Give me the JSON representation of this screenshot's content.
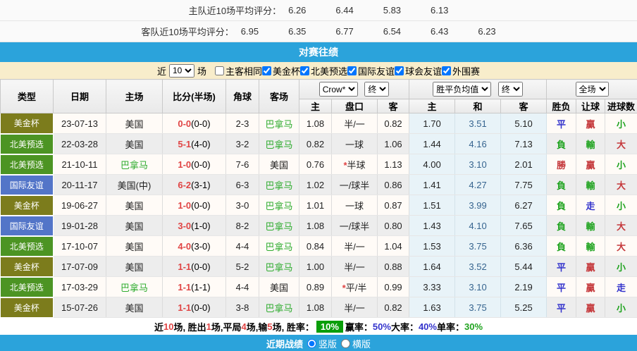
{
  "colors": {
    "bar_blue": "#2BA3DB",
    "filter_bg": "#F8EDCB",
    "type_olive": "#7C7C1C",
    "type_green": "#4C9423",
    "type_blue": "#5375C8",
    "team_green": "#2FAC2F",
    "score_red": "#E04444",
    "mean_blue": "#36648F",
    "res_red": "#C5383B",
    "res_green": "#1FA31F",
    "res_blue": "#3333CC",
    "badge_green": "#0A9E0A"
  },
  "ratings": {
    "home_label": "主队近10场平均评分：",
    "home_values": [
      "6.26",
      "6.44",
      "5.83",
      "6.13"
    ],
    "away_label": "客队近10场平均评分：",
    "away_values": [
      "6.95",
      "6.35",
      "6.77",
      "6.54",
      "6.43",
      "6.23"
    ]
  },
  "h2h": {
    "title": "对赛往绩"
  },
  "filter": {
    "near_label": "近",
    "count_value": "10",
    "games_label": "场",
    "checkboxes": [
      {
        "label": "主客相同",
        "checked": false
      },
      {
        "label": "美金杯",
        "checked": true
      },
      {
        "label": "北美预选",
        "checked": true
      },
      {
        "label": "国际友谊",
        "checked": true
      },
      {
        "label": "球会友谊",
        "checked": true
      },
      {
        "label": "外围赛",
        "checked": true
      }
    ]
  },
  "table": {
    "columns": [
      "类型",
      "日期",
      "主场",
      "比分(半场)",
      "角球",
      "客场"
    ],
    "dropdowns": {
      "odds_source": "Crow*",
      "odds_state": "终",
      "mean_label": "胜平负均值",
      "mean_state": "终",
      "scope": "全场"
    },
    "subcolumns": [
      "主",
      "盘口",
      "客",
      "主",
      "和",
      "客",
      "胜负",
      "让球",
      "进球数"
    ],
    "rows": [
      {
        "type": "美金杯",
        "type_color": "olive",
        "date": "23-07-13",
        "home": "美国",
        "home_green": false,
        "score": "0-0",
        "half": "(0-0)",
        "corner": "2-3",
        "away": "巴拿马",
        "away_green": true,
        "odds": [
          "1.08",
          "半/一",
          "0.82"
        ],
        "star": false,
        "mean": [
          "1.70",
          "3.51",
          "5.10"
        ],
        "res": [
          [
            "平",
            "blue"
          ],
          [
            "贏",
            "red"
          ],
          [
            "小",
            "green"
          ]
        ]
      },
      {
        "type": "北美预选",
        "type_color": "green",
        "date": "22-03-28",
        "home": "美国",
        "home_green": false,
        "score": "5-1",
        "half": "(4-0)",
        "corner": "3-2",
        "away": "巴拿马",
        "away_green": true,
        "odds": [
          "0.82",
          "一球",
          "1.06"
        ],
        "star": false,
        "mean": [
          "1.44",
          "4.16",
          "7.13"
        ],
        "res": [
          [
            "負",
            "green"
          ],
          [
            "輸",
            "green"
          ],
          [
            "大",
            "red"
          ]
        ]
      },
      {
        "type": "北美预选",
        "type_color": "green",
        "date": "21-10-11",
        "home": "巴拿马",
        "home_green": true,
        "score": "1-0",
        "half": "(0-0)",
        "corner": "7-6",
        "away": "美国",
        "away_green": false,
        "odds": [
          "0.76",
          "半球",
          "1.13"
        ],
        "star": true,
        "mean": [
          "4.00",
          "3.10",
          "2.01"
        ],
        "res": [
          [
            "勝",
            "red"
          ],
          [
            "贏",
            "red"
          ],
          [
            "小",
            "green"
          ]
        ]
      },
      {
        "type": "国际友谊",
        "type_color": "blue",
        "date": "20-11-17",
        "home": "美国(中)",
        "home_green": false,
        "score": "6-2",
        "half": "(3-1)",
        "corner": "6-3",
        "away": "巴拿马",
        "away_green": true,
        "odds": [
          "1.02",
          "一/球半",
          "0.86"
        ],
        "star": false,
        "mean": [
          "1.41",
          "4.27",
          "7.75"
        ],
        "res": [
          [
            "負",
            "green"
          ],
          [
            "輸",
            "green"
          ],
          [
            "大",
            "red"
          ]
        ]
      },
      {
        "type": "美金杯",
        "type_color": "olive",
        "date": "19-06-27",
        "home": "美国",
        "home_green": false,
        "score": "1-0",
        "half": "(0-0)",
        "corner": "3-0",
        "away": "巴拿马",
        "away_green": true,
        "odds": [
          "1.01",
          "一球",
          "0.87"
        ],
        "star": false,
        "mean": [
          "1.51",
          "3.99",
          "6.27"
        ],
        "res": [
          [
            "負",
            "green"
          ],
          [
            "走",
            "blue"
          ],
          [
            "小",
            "green"
          ]
        ]
      },
      {
        "type": "国际友谊",
        "type_color": "blue",
        "date": "19-01-28",
        "home": "美国",
        "home_green": false,
        "score": "3-0",
        "half": "(1-0)",
        "corner": "8-2",
        "away": "巴拿马",
        "away_green": true,
        "odds": [
          "1.08",
          "一/球半",
          "0.80"
        ],
        "star": false,
        "mean": [
          "1.43",
          "4.10",
          "7.65"
        ],
        "res": [
          [
            "負",
            "green"
          ],
          [
            "輸",
            "green"
          ],
          [
            "大",
            "red"
          ]
        ]
      },
      {
        "type": "北美预选",
        "type_color": "green",
        "date": "17-10-07",
        "home": "美国",
        "home_green": false,
        "score": "4-0",
        "half": "(3-0)",
        "corner": "4-4",
        "away": "巴拿马",
        "away_green": true,
        "odds": [
          "0.84",
          "半/一",
          "1.04"
        ],
        "star": false,
        "mean": [
          "1.53",
          "3.75",
          "6.36"
        ],
        "res": [
          [
            "負",
            "green"
          ],
          [
            "輸",
            "green"
          ],
          [
            "大",
            "red"
          ]
        ]
      },
      {
        "type": "美金杯",
        "type_color": "olive",
        "date": "17-07-09",
        "home": "美国",
        "home_green": false,
        "score": "1-1",
        "half": "(0-0)",
        "corner": "5-2",
        "away": "巴拿马",
        "away_green": true,
        "odds": [
          "1.00",
          "半/一",
          "0.88"
        ],
        "star": false,
        "mean": [
          "1.64",
          "3.52",
          "5.44"
        ],
        "res": [
          [
            "平",
            "blue"
          ],
          [
            "贏",
            "red"
          ],
          [
            "小",
            "green"
          ]
        ]
      },
      {
        "type": "北美预选",
        "type_color": "green",
        "date": "17-03-29",
        "home": "巴拿马",
        "home_green": true,
        "score": "1-1",
        "half": "(1-1)",
        "corner": "4-4",
        "away": "美国",
        "away_green": false,
        "odds": [
          "0.89",
          "平/半",
          "0.99"
        ],
        "star": true,
        "mean": [
          "3.33",
          "3.10",
          "2.19"
        ],
        "res": [
          [
            "平",
            "blue"
          ],
          [
            "贏",
            "red"
          ],
          [
            "走",
            "blue"
          ]
        ]
      },
      {
        "type": "美金杯",
        "type_color": "olive",
        "date": "15-07-26",
        "home": "美国",
        "home_green": false,
        "score": "1-1",
        "half": "(0-0)",
        "corner": "3-8",
        "away": "巴拿马",
        "away_green": true,
        "odds": [
          "1.08",
          "半/一",
          "0.82"
        ],
        "star": false,
        "mean": [
          "1.63",
          "3.75",
          "5.25"
        ],
        "res": [
          [
            "平",
            "blue"
          ],
          [
            "贏",
            "red"
          ],
          [
            "小",
            "green"
          ]
        ]
      }
    ]
  },
  "summary": {
    "segments": [
      [
        "近 ",
        "plain"
      ],
      [
        "10",
        "red"
      ],
      [
        " 场, 胜出 ",
        "plain"
      ],
      [
        "1",
        "red"
      ],
      [
        " 场,平局 ",
        "plain"
      ],
      [
        "4",
        "red"
      ],
      [
        " 场,输 ",
        "plain"
      ],
      [
        "5",
        "red"
      ],
      [
        " 场, 胜率： ",
        "plain"
      ],
      [
        "10%",
        "badge"
      ],
      [
        " 赢率： ",
        "plain"
      ],
      [
        "50%",
        "blue"
      ],
      [
        " 大率： ",
        "plain"
      ],
      [
        "40%",
        "blue"
      ],
      [
        " 单率： ",
        "plain"
      ],
      [
        "30%",
        "green"
      ]
    ]
  },
  "recent": {
    "title": "近期战绩",
    "vertical_label": "竖版",
    "vertical_checked": true,
    "horizontal_label": "横版",
    "horizontal_checked": false
  }
}
